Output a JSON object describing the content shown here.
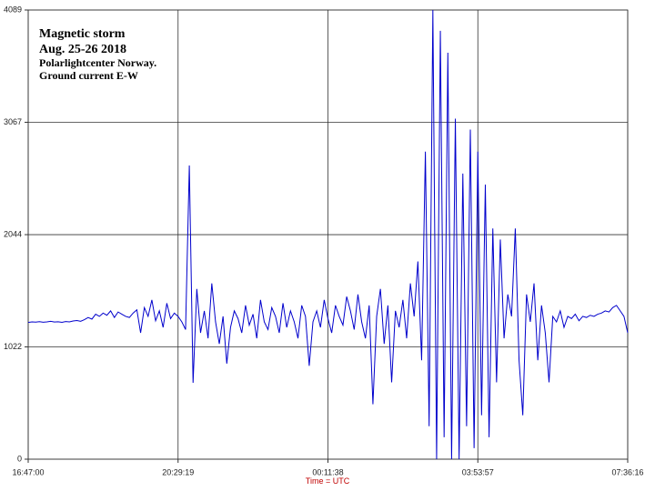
{
  "chart_data": {
    "type": "line",
    "title_lines": [
      "Magnetic storm",
      "Aug. 25-26 2018",
      "Polarlightcenter Norway.",
      "Ground current E-W"
    ],
    "x_label": "Time = UTC",
    "categories": [
      "16:47:00",
      null,
      null,
      null,
      null,
      null,
      null,
      null,
      null,
      null,
      null,
      null,
      null,
      null,
      null,
      null,
      null,
      null,
      null,
      null,
      null,
      null,
      null,
      null,
      null,
      null,
      null,
      null,
      null,
      null,
      null,
      null,
      null,
      null,
      null,
      null,
      null,
      null,
      null,
      null,
      "20:29:19",
      null,
      null,
      null,
      null,
      null,
      null,
      null,
      null,
      null,
      null,
      null,
      null,
      null,
      null,
      null,
      null,
      null,
      null,
      null,
      null,
      null,
      null,
      null,
      null,
      null,
      null,
      null,
      null,
      null,
      null,
      null,
      null,
      null,
      null,
      null,
      null,
      null,
      null,
      null,
      "00:11:38",
      null,
      null,
      null,
      null,
      null,
      null,
      null,
      null,
      null,
      null,
      null,
      null,
      null,
      null,
      null,
      null,
      null,
      null,
      null,
      null,
      null,
      null,
      null,
      null,
      null,
      null,
      null,
      null,
      null,
      null,
      null,
      null,
      null,
      null,
      null,
      null,
      null,
      null,
      null,
      "03:53:57",
      null,
      null,
      null,
      null,
      null,
      null,
      null,
      null,
      null,
      null,
      null,
      null,
      null,
      null,
      null,
      null,
      null,
      null,
      null,
      null,
      null,
      null,
      null,
      null,
      null,
      null,
      null,
      null,
      null,
      null,
      null,
      null,
      null,
      null,
      null,
      null,
      null,
      null,
      null,
      "07:36:16"
    ],
    "series": [
      {
        "name": "Ground current E-W",
        "color": "#0000cc",
        "values": [
          1245,
          1250,
          1248,
          1252,
          1247,
          1250,
          1255,
          1249,
          1251,
          1246,
          1253,
          1250,
          1258,
          1262,
          1255,
          1270,
          1290,
          1275,
          1320,
          1300,
          1330,
          1310,
          1350,
          1290,
          1340,
          1320,
          1300,
          1290,
          1330,
          1360,
          1150,
          1380,
          1300,
          1450,
          1260,
          1350,
          1200,
          1420,
          1280,
          1330,
          1300,
          1250,
          1180,
          2673,
          695,
          1550,
          1150,
          1350,
          1100,
          1600,
          1250,
          1050,
          1300,
          870,
          1200,
          1350,
          1280,
          1150,
          1400,
          1220,
          1320,
          1100,
          1450,
          1250,
          1180,
          1380,
          1300,
          1150,
          1420,
          1200,
          1350,
          1250,
          1100,
          1400,
          1300,
          850,
          1250,
          1350,
          1200,
          1450,
          1280,
          1150,
          1400,
          1300,
          1220,
          1480,
          1350,
          1180,
          1500,
          1250,
          1100,
          1400,
          500,
          1300,
          1550,
          1050,
          1400,
          700,
          1350,
          1200,
          1450,
          1100,
          1600,
          1300,
          1800,
          900,
          2800,
          300,
          4089,
          0,
          3900,
          200,
          3700,
          0,
          3100,
          0,
          2600,
          300,
          3000,
          100,
          2800,
          400,
          2500,
          200,
          2100,
          700,
          2000,
          1100,
          1500,
          1300,
          2100,
          900,
          400,
          1500,
          1250,
          1600,
          900,
          1400,
          1150,
          700,
          1300,
          1250,
          1350,
          1200,
          1300,
          1280,
          1320,
          1260,
          1300,
          1290,
          1310,
          1300,
          1320,
          1330,
          1350,
          1340,
          1380,
          1400,
          1350,
          1300,
          1150
        ]
      }
    ],
    "ylim": [
      0,
      4089
    ],
    "yticks": [
      0,
      1022,
      2044,
      3067,
      4089
    ],
    "grid": true
  }
}
